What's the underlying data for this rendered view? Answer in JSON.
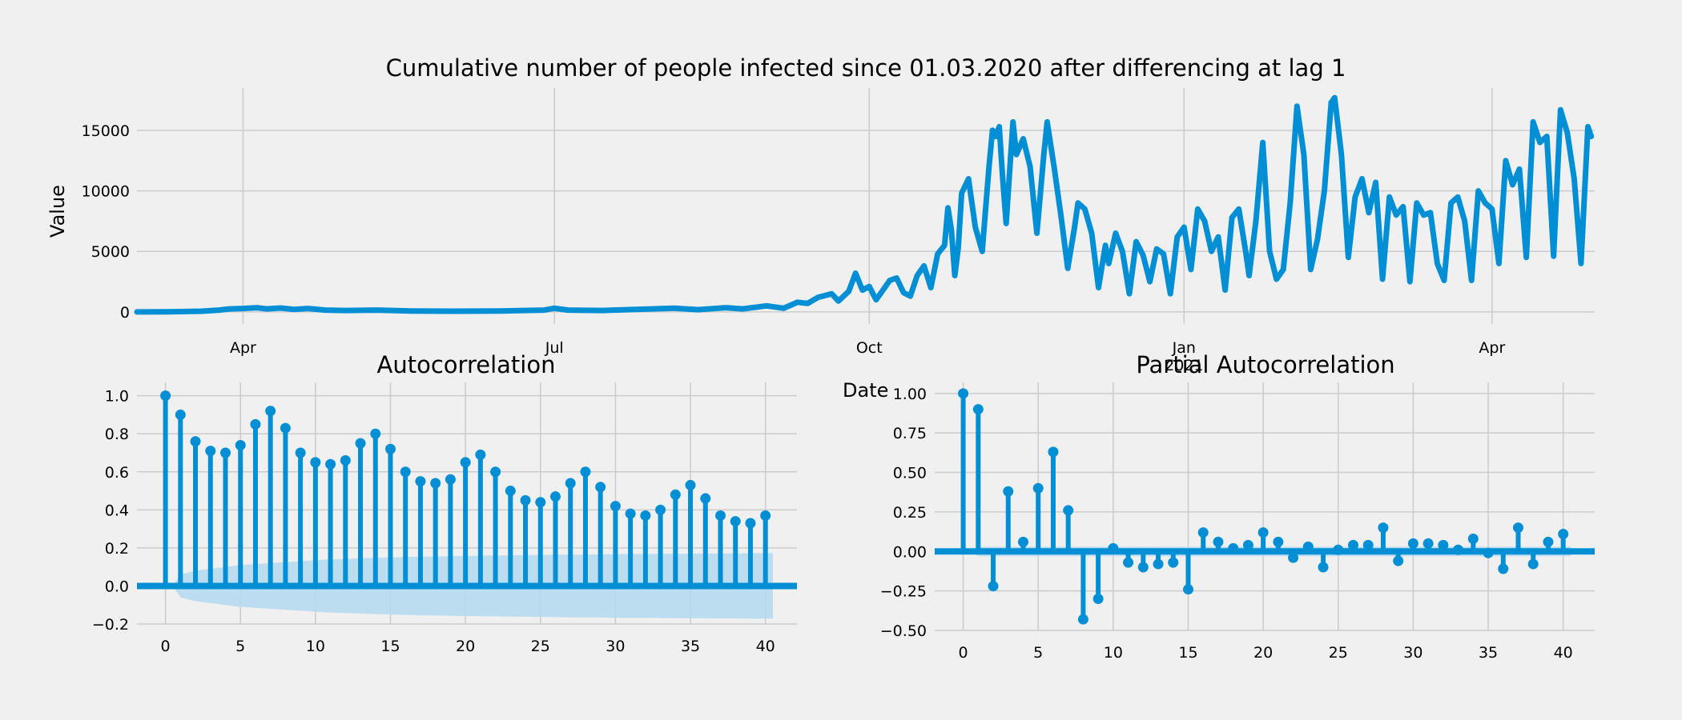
{
  "colors": {
    "background": "#f0f0f0",
    "series": "#008fd5",
    "confidence_band": "#b3d9ee",
    "grid": "#cbcbcb"
  },
  "chart_data": [
    {
      "type": "line",
      "title": "Cumulative number of people infected since 01.03.2020 after differencing at lag 1",
      "xlabel": "Date",
      "ylabel": "Value",
      "x_tick_labels": [
        "Apr",
        "Jul",
        "Oct",
        "Jan",
        "2021",
        "Apr"
      ],
      "y_ticks": [
        0,
        5000,
        10000,
        15000
      ],
      "ylim": [
        -1000,
        18500
      ],
      "x_range": [
        "2020-03-01",
        "2021-05-01"
      ],
      "grid": true,
      "series": [
        {
          "points": [
            [
              "2020-03-01",
              0
            ],
            [
              "2020-03-10",
              10
            ],
            [
              "2020-03-20",
              60
            ],
            [
              "2020-03-25",
              150
            ],
            [
              "2020-03-28",
              250
            ],
            [
              "2020-04-01",
              280
            ],
            [
              "2020-04-05",
              350
            ],
            [
              "2020-04-08",
              250
            ],
            [
              "2020-04-12",
              320
            ],
            [
              "2020-04-16",
              200
            ],
            [
              "2020-04-20",
              280
            ],
            [
              "2020-04-25",
              150
            ],
            [
              "2020-05-01",
              120
            ],
            [
              "2020-05-10",
              150
            ],
            [
              "2020-05-20",
              80
            ],
            [
              "2020-06-01",
              60
            ],
            [
              "2020-06-15",
              70
            ],
            [
              "2020-06-28",
              150
            ],
            [
              "2020-07-01",
              300
            ],
            [
              "2020-07-05",
              150
            ],
            [
              "2020-07-15",
              120
            ],
            [
              "2020-07-25",
              200
            ],
            [
              "2020-08-05",
              300
            ],
            [
              "2020-08-12",
              180
            ],
            [
              "2020-08-20",
              350
            ],
            [
              "2020-08-25",
              250
            ],
            [
              "2020-09-01",
              500
            ],
            [
              "2020-09-06",
              300
            ],
            [
              "2020-09-10",
              800
            ],
            [
              "2020-09-13",
              700
            ],
            [
              "2020-09-16",
              1200
            ],
            [
              "2020-09-20",
              1500
            ],
            [
              "2020-09-22",
              900
            ],
            [
              "2020-09-25",
              1700
            ],
            [
              "2020-09-27",
              3200
            ],
            [
              "2020-09-29",
              1800
            ],
            [
              "2020-10-01",
              2100
            ],
            [
              "2020-10-03",
              1000
            ],
            [
              "2020-10-05",
              1800
            ],
            [
              "2020-10-07",
              2600
            ],
            [
              "2020-10-09",
              2800
            ],
            [
              "2020-10-11",
              1600
            ],
            [
              "2020-10-13",
              1300
            ],
            [
              "2020-10-15",
              3000
            ],
            [
              "2020-10-17",
              3800
            ],
            [
              "2020-10-19",
              2000
            ],
            [
              "2020-10-21",
              4800
            ],
            [
              "2020-10-23",
              5500
            ],
            [
              "2020-10-24",
              8600
            ],
            [
              "2020-10-25",
              6800
            ],
            [
              "2020-10-26",
              3000
            ],
            [
              "2020-10-27",
              5300
            ],
            [
              "2020-10-28",
              9800
            ],
            [
              "2020-10-30",
              11000
            ],
            [
              "2020-11-01",
              7000
            ],
            [
              "2020-11-03",
              5000
            ],
            [
              "2020-11-05",
              12000
            ],
            [
              "2020-11-06",
              15000
            ],
            [
              "2020-11-07",
              14500
            ],
            [
              "2020-11-08",
              15300
            ],
            [
              "2020-11-09",
              11000
            ],
            [
              "2020-11-10",
              7300
            ],
            [
              "2020-11-12",
              15700
            ],
            [
              "2020-11-13",
              13000
            ],
            [
              "2020-11-15",
              14300
            ],
            [
              "2020-11-17",
              12000
            ],
            [
              "2020-11-19",
              6500
            ],
            [
              "2020-11-21",
              13000
            ],
            [
              "2020-11-22",
              15700
            ],
            [
              "2020-11-24",
              12000
            ],
            [
              "2020-11-26",
              8000
            ],
            [
              "2020-11-28",
              3600
            ],
            [
              "2020-11-30",
              7000
            ],
            [
              "2020-12-01",
              9000
            ],
            [
              "2020-12-03",
              8500
            ],
            [
              "2020-12-05",
              6500
            ],
            [
              "2020-12-07",
              2000
            ],
            [
              "2020-12-09",
              5500
            ],
            [
              "2020-12-10",
              4000
            ],
            [
              "2020-12-12",
              6500
            ],
            [
              "2020-12-14",
              5000
            ],
            [
              "2020-12-16",
              1500
            ],
            [
              "2020-12-18",
              5800
            ],
            [
              "2020-12-20",
              4700
            ],
            [
              "2020-12-22",
              2500
            ],
            [
              "2020-12-24",
              5200
            ],
            [
              "2020-12-26",
              4800
            ],
            [
              "2020-12-28",
              1500
            ],
            [
              "2020-12-30",
              6200
            ],
            [
              "2021-01-01",
              7000
            ],
            [
              "2021-01-03",
              3500
            ],
            [
              "2021-01-05",
              8500
            ],
            [
              "2021-01-07",
              7500
            ],
            [
              "2021-01-09",
              5000
            ],
            [
              "2021-01-11",
              6200
            ],
            [
              "2021-01-13",
              1800
            ],
            [
              "2021-01-15",
              7800
            ],
            [
              "2021-01-17",
              8500
            ],
            [
              "2021-01-19",
              5000
            ],
            [
              "2021-01-20",
              3000
            ],
            [
              "2021-01-22",
              7500
            ],
            [
              "2021-01-24",
              14000
            ],
            [
              "2021-01-26",
              5000
            ],
            [
              "2021-01-28",
              2700
            ],
            [
              "2021-01-30",
              3500
            ],
            [
              "2021-02-01",
              9000
            ],
            [
              "2021-02-03",
              17000
            ],
            [
              "2021-02-05",
              13000
            ],
            [
              "2021-02-07",
              3500
            ],
            [
              "2021-02-09",
              6000
            ],
            [
              "2021-02-11",
              10000
            ],
            [
              "2021-02-13",
              17300
            ],
            [
              "2021-02-14",
              17700
            ],
            [
              "2021-02-16",
              13000
            ],
            [
              "2021-02-18",
              4500
            ],
            [
              "2021-02-20",
              9500
            ],
            [
              "2021-02-22",
              11000
            ],
            [
              "2021-02-24",
              8200
            ],
            [
              "2021-02-26",
              10700
            ],
            [
              "2021-02-28",
              2700
            ],
            [
              "2021-03-02",
              9500
            ],
            [
              "2021-03-04",
              8000
            ],
            [
              "2021-03-06",
              8700
            ],
            [
              "2021-03-08",
              2500
            ],
            [
              "2021-03-10",
              9000
            ],
            [
              "2021-03-12",
              8000
            ],
            [
              "2021-03-14",
              8200
            ],
            [
              "2021-03-16",
              4000
            ],
            [
              "2021-03-18",
              2600
            ],
            [
              "2021-03-20",
              9000
            ],
            [
              "2021-03-22",
              9500
            ],
            [
              "2021-03-24",
              7500
            ],
            [
              "2021-03-26",
              2600
            ],
            [
              "2021-03-28",
              10000
            ],
            [
              "2021-03-30",
              9000
            ],
            [
              "2021-04-01",
              8500
            ],
            [
              "2021-04-03",
              4000
            ],
            [
              "2021-04-05",
              12500
            ],
            [
              "2021-04-07",
              10500
            ],
            [
              "2021-04-09",
              11800
            ],
            [
              "2021-04-11",
              4500
            ],
            [
              "2021-04-13",
              15700
            ],
            [
              "2021-04-15",
              14000
            ],
            [
              "2021-04-17",
              14500
            ],
            [
              "2021-04-19",
              4600
            ],
            [
              "2021-04-21",
              16700
            ],
            [
              "2021-04-23",
              14800
            ],
            [
              "2021-04-25",
              11000
            ],
            [
              "2021-04-27",
              4000
            ],
            [
              "2021-04-29",
              15300
            ],
            [
              "2021-04-30",
              14500
            ]
          ]
        }
      ]
    },
    {
      "type": "stem",
      "title": "Autocorrelation",
      "x_ticks": [
        0,
        5,
        10,
        15,
        20,
        25,
        30,
        35,
        40
      ],
      "y_ticks": [
        -0.2,
        0.0,
        0.2,
        0.4,
        0.6,
        0.8,
        1.0
      ],
      "ylim": [
        -0.2,
        1.07
      ],
      "xlim": [
        -1.9,
        42.1
      ],
      "grid": true,
      "lags": [
        0,
        1,
        2,
        3,
        4,
        5,
        6,
        7,
        8,
        9,
        10,
        11,
        12,
        13,
        14,
        15,
        16,
        17,
        18,
        19,
        20,
        21,
        22,
        23,
        24,
        25,
        26,
        27,
        28,
        29,
        30,
        31,
        32,
        33,
        34,
        35,
        36,
        37,
        38,
        39,
        40
      ],
      "values": [
        1.0,
        0.9,
        0.76,
        0.71,
        0.7,
        0.74,
        0.85,
        0.92,
        0.83,
        0.7,
        0.65,
        0.64,
        0.66,
        0.75,
        0.8,
        0.72,
        0.6,
        0.55,
        0.54,
        0.56,
        0.65,
        0.69,
        0.6,
        0.5,
        0.45,
        0.44,
        0.47,
        0.54,
        0.6,
        0.52,
        0.42,
        0.38,
        0.37,
        0.4,
        0.48,
        0.53,
        0.46,
        0.37,
        0.34,
        0.33,
        0.37
      ],
      "confidence_upper": [
        0.03,
        0.06,
        0.08,
        0.09,
        0.1,
        0.11,
        0.115,
        0.12,
        0.125,
        0.13,
        0.135,
        0.14,
        0.142,
        0.145,
        0.148,
        0.15,
        0.152,
        0.154,
        0.155,
        0.157,
        0.158,
        0.159,
        0.16,
        0.161,
        0.162,
        0.163,
        0.164,
        0.165,
        0.165,
        0.166,
        0.167,
        0.168,
        0.168,
        0.169,
        0.169,
        0.17,
        0.17,
        0.171,
        0.171,
        0.172,
        0.172
      ]
    },
    {
      "type": "stem",
      "title": "Partial Autocorrelation",
      "x_ticks": [
        0,
        5,
        10,
        15,
        20,
        25,
        30,
        35,
        40
      ],
      "y_ticks": [
        -0.5,
        -0.25,
        0.0,
        0.25,
        0.5,
        0.75,
        1.0
      ],
      "y_tick_labels": [
        "−0.50",
        "−0.25",
        "0.00",
        "0.25",
        "0.50",
        "0.75",
        "1.00"
      ],
      "ylim": [
        -0.5,
        1.07
      ],
      "xlim": [
        -1.9,
        42.1
      ],
      "grid": true,
      "lags": [
        0,
        1,
        2,
        3,
        4,
        5,
        6,
        7,
        8,
        9,
        10,
        11,
        12,
        13,
        14,
        15,
        16,
        17,
        18,
        19,
        20,
        21,
        22,
        23,
        24,
        25,
        26,
        27,
        28,
        29,
        30,
        31,
        32,
        33,
        34,
        35,
        36,
        37,
        38,
        39,
        40
      ],
      "values": [
        1.0,
        0.9,
        -0.22,
        0.38,
        0.06,
        0.4,
        0.63,
        0.26,
        -0.43,
        -0.3,
        0.02,
        -0.07,
        -0.1,
        -0.08,
        -0.07,
        -0.24,
        0.12,
        0.06,
        0.02,
        0.04,
        0.12,
        0.06,
        -0.04,
        0.03,
        -0.1,
        0.01,
        0.04,
        0.04,
        0.15,
        -0.06,
        0.05,
        0.05,
        0.04,
        0.01,
        0.08,
        -0.01,
        -0.11,
        0.15,
        -0.08,
        0.06,
        0.11
      ],
      "confidence_upper": 0.03
    }
  ]
}
